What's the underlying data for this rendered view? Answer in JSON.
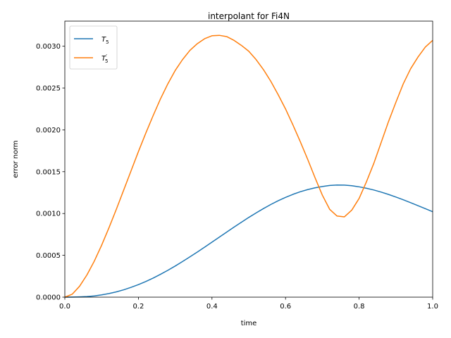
{
  "chart_data": {
    "type": "line",
    "title": "interpolant for Fi4N",
    "xlabel": "time",
    "ylabel": "error norm",
    "xlim": [
      0,
      1
    ],
    "ylim": [
      0,
      0.0033
    ],
    "xticks": [
      "0.0",
      "0.2",
      "0.4",
      "0.6",
      "0.8",
      "1.0"
    ],
    "yticks": [
      "0.0000",
      "0.0005",
      "0.0010",
      "0.0015",
      "0.0020",
      "0.0025",
      "0.0030"
    ],
    "grid": false,
    "legend_placement": "top-left",
    "x": [
      0.0,
      0.02,
      0.04,
      0.06,
      0.08,
      0.1,
      0.12,
      0.14,
      0.16,
      0.18,
      0.2,
      0.22,
      0.24,
      0.26,
      0.28,
      0.3,
      0.32,
      0.34,
      0.36,
      0.38,
      0.4,
      0.42,
      0.44,
      0.46,
      0.48,
      0.5,
      0.52,
      0.54,
      0.56,
      0.58,
      0.6,
      0.62,
      0.64,
      0.66,
      0.68,
      0.7,
      0.72,
      0.74,
      0.76,
      0.78,
      0.8,
      0.82,
      0.84,
      0.86,
      0.88,
      0.9,
      0.92,
      0.94,
      0.96,
      0.98,
      1.0
    ],
    "series": [
      {
        "name": "T5",
        "label_base": "T",
        "label_sub": "5",
        "label_prime": "",
        "color": "#1f77b4",
        "values": [
          0.0,
          1e-06,
          3e-06,
          7e-06,
          1.5e-05,
          2.7e-05,
          4.3e-05,
          6.3e-05,
          8.8e-05,
          0.000117,
          0.00015,
          0.000187,
          0.000228,
          0.000273,
          0.000321,
          0.000372,
          0.000426,
          0.000482,
          0.000539,
          0.000598,
          0.000658,
          0.000718,
          0.000778,
          0.000838,
          0.000896,
          0.000953,
          0.001007,
          0.001059,
          0.001108,
          0.001153,
          0.001193,
          0.001229,
          0.00126,
          0.001286,
          0.001307,
          0.001323,
          0.001335,
          0.001341,
          0.00134,
          0.001332,
          0.001319,
          0.001302,
          0.001281,
          0.001256,
          0.001228,
          0.001197,
          0.001164,
          0.00113,
          0.001094,
          0.001058,
          0.001021
        ]
      },
      {
        "name": "T'5",
        "label_base": "T",
        "label_sub": "5",
        "label_prime": "′",
        "color": "#ff7f0e",
        "values": [
          0.0,
          3.5e-05,
          0.00013,
          0.000265,
          0.00043,
          0.00062,
          0.00083,
          0.00105,
          0.00128,
          0.00151,
          0.00174,
          0.00196,
          0.00217,
          0.00237,
          0.00255,
          0.00271,
          0.00284,
          0.00295,
          0.00303,
          0.00309,
          0.003125,
          0.00313,
          0.003115,
          0.00307,
          0.00301,
          0.00294,
          0.00284,
          0.00272,
          0.00258,
          0.00242,
          0.00225,
          0.00206,
          0.00186,
          0.00165,
          0.00143,
          0.00122,
          0.00105,
          0.00097,
          0.00096,
          0.00104,
          0.00118,
          0.00138,
          0.0016,
          0.00185,
          0.0021,
          0.00233,
          0.00255,
          0.00273,
          0.00287,
          0.00299,
          0.00307
        ]
      }
    ]
  }
}
